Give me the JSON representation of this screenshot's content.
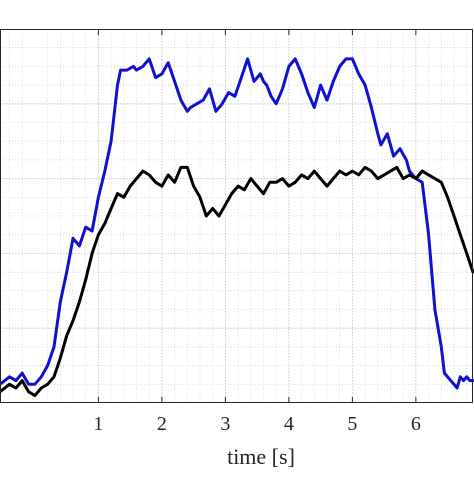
{
  "chart_data": {
    "type": "line",
    "title": "",
    "xlabel": "time [s]",
    "ylabel": "",
    "xlim": [
      -0.55,
      6.9
    ],
    "ylim": [
      0,
      1
    ],
    "x_ticks": [
      1,
      2,
      3,
      4,
      5,
      6
    ],
    "x_tick_labels": [
      "1",
      "2",
      "3",
      "4",
      "5",
      "6"
    ],
    "y_ticks": [],
    "grid": true,
    "minor_grid": true,
    "legend": "none",
    "series": [
      {
        "color": "#1010d0",
        "x": [
          -0.55,
          -0.4,
          -0.3,
          -0.2,
          -0.1,
          0,
          0.1,
          0.2,
          0.3,
          0.4,
          0.5,
          0.6,
          0.7,
          0.8,
          0.9,
          1.0,
          1.1,
          1.2,
          1.3,
          1.35,
          1.45,
          1.55,
          1.6,
          1.7,
          1.8,
          1.9,
          2.0,
          2.1,
          2.2,
          2.3,
          2.4,
          2.45,
          2.55,
          2.65,
          2.75,
          2.85,
          2.95,
          3.05,
          3.15,
          3.25,
          3.35,
          3.45,
          3.55,
          3.6,
          3.65,
          3.72,
          3.8,
          3.9,
          4.0,
          4.1,
          4.2,
          4.3,
          4.4,
          4.5,
          4.6,
          4.7,
          4.8,
          4.9,
          5.0,
          5.1,
          5.2,
          5.3,
          5.4,
          5.45,
          5.55,
          5.65,
          5.75,
          5.85,
          5.9,
          6.0,
          6.1,
          6.2,
          6.3,
          6.4,
          6.45,
          6.55,
          6.6,
          6.65,
          6.7,
          6.75,
          6.8,
          6.85,
          6.9
        ],
        "y": [
          0.05,
          0.07,
          0.06,
          0.08,
          0.05,
          0.05,
          0.07,
          0.1,
          0.15,
          0.27,
          0.35,
          0.44,
          0.42,
          0.47,
          0.46,
          0.55,
          0.62,
          0.7,
          0.85,
          0.89,
          0.89,
          0.9,
          0.89,
          0.9,
          0.92,
          0.87,
          0.88,
          0.91,
          0.86,
          0.81,
          0.78,
          0.79,
          0.8,
          0.81,
          0.84,
          0.78,
          0.8,
          0.83,
          0.82,
          0.87,
          0.92,
          0.86,
          0.88,
          0.86,
          0.85,
          0.82,
          0.8,
          0.84,
          0.9,
          0.92,
          0.88,
          0.83,
          0.79,
          0.85,
          0.81,
          0.86,
          0.9,
          0.92,
          0.92,
          0.88,
          0.85,
          0.79,
          0.72,
          0.69,
          0.72,
          0.66,
          0.68,
          0.65,
          0.62,
          0.6,
          0.59,
          0.45,
          0.25,
          0.15,
          0.08,
          0.06,
          0.05,
          0.04,
          0.07,
          0.06,
          0.07,
          0.06,
          0.06
        ]
      },
      {
        "color": "#000000",
        "x": [
          -0.55,
          -0.4,
          -0.3,
          -0.2,
          -0.1,
          0,
          0.1,
          0.2,
          0.3,
          0.4,
          0.5,
          0.6,
          0.7,
          0.8,
          0.9,
          1.0,
          1.1,
          1.2,
          1.3,
          1.4,
          1.5,
          1.6,
          1.7,
          1.8,
          1.9,
          2.0,
          2.1,
          2.2,
          2.3,
          2.4,
          2.5,
          2.6,
          2.7,
          2.8,
          2.9,
          3.0,
          3.1,
          3.2,
          3.3,
          3.4,
          3.5,
          3.6,
          3.7,
          3.8,
          3.9,
          4.0,
          4.1,
          4.2,
          4.3,
          4.4,
          4.5,
          4.6,
          4.7,
          4.8,
          4.9,
          5.0,
          5.1,
          5.2,
          5.3,
          5.4,
          5.5,
          5.6,
          5.7,
          5.8,
          5.9,
          6.0,
          6.1,
          6.2,
          6.3,
          6.4,
          6.5,
          6.6,
          6.7,
          6.8,
          6.9
        ],
        "y": [
          0.03,
          0.05,
          0.04,
          0.06,
          0.03,
          0.02,
          0.04,
          0.05,
          0.07,
          0.12,
          0.18,
          0.22,
          0.27,
          0.33,
          0.4,
          0.45,
          0.48,
          0.52,
          0.56,
          0.55,
          0.58,
          0.6,
          0.62,
          0.61,
          0.59,
          0.58,
          0.61,
          0.59,
          0.63,
          0.63,
          0.58,
          0.55,
          0.5,
          0.52,
          0.5,
          0.53,
          0.56,
          0.58,
          0.57,
          0.6,
          0.58,
          0.56,
          0.59,
          0.59,
          0.6,
          0.58,
          0.59,
          0.61,
          0.6,
          0.62,
          0.6,
          0.58,
          0.6,
          0.62,
          0.61,
          0.62,
          0.61,
          0.63,
          0.62,
          0.6,
          0.61,
          0.62,
          0.63,
          0.6,
          0.61,
          0.6,
          0.62,
          0.61,
          0.6,
          0.59,
          0.55,
          0.5,
          0.45,
          0.4,
          0.35
        ]
      }
    ]
  }
}
